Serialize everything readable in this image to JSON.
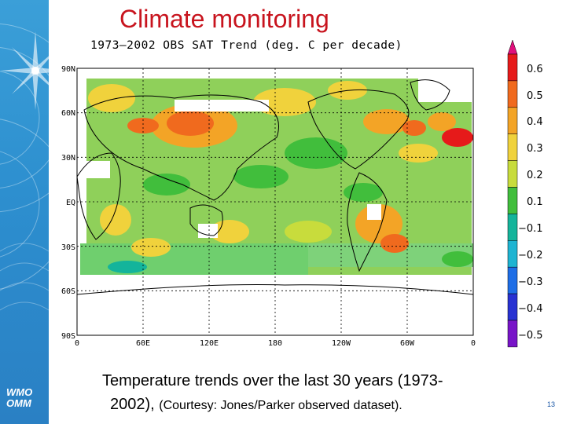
{
  "slide": {
    "title": "Climate monitoring",
    "page_number": "13",
    "logo_text_1": "WMO",
    "logo_text_2": "OMM"
  },
  "map": {
    "title": "1973—2002 OBS SAT Trend (deg. C per decade)",
    "lat_labels": [
      "90N",
      "60N",
      "30N",
      "EQ",
      "30S",
      "60S",
      "90S"
    ],
    "lon_labels": [
      "0",
      "60E",
      "120E",
      "180",
      "120W",
      "60W",
      "0"
    ]
  },
  "colorbar": {
    "labels": [
      "0.6",
      "0.5",
      "0.4",
      "0.3",
      "0.2",
      "0.1",
      "−0.1",
      "−0.2",
      "−0.3",
      "−0.4",
      "−0.5"
    ],
    "colors": [
      "#e0107c",
      "#e61a1a",
      "#f06a1e",
      "#f3a426",
      "#f0d23c",
      "#c8dc3c",
      "#41be3c",
      "#14b49b",
      "#1eb4d2",
      "#1e6ee6",
      "#2832d2",
      "#7814c8"
    ]
  },
  "caption": {
    "line1": "Temperature trends over the last 30 years (1973-",
    "line2_main": "2002), ",
    "line2_source": "(Courtesy: Jones/Parker observed dataset)."
  }
}
